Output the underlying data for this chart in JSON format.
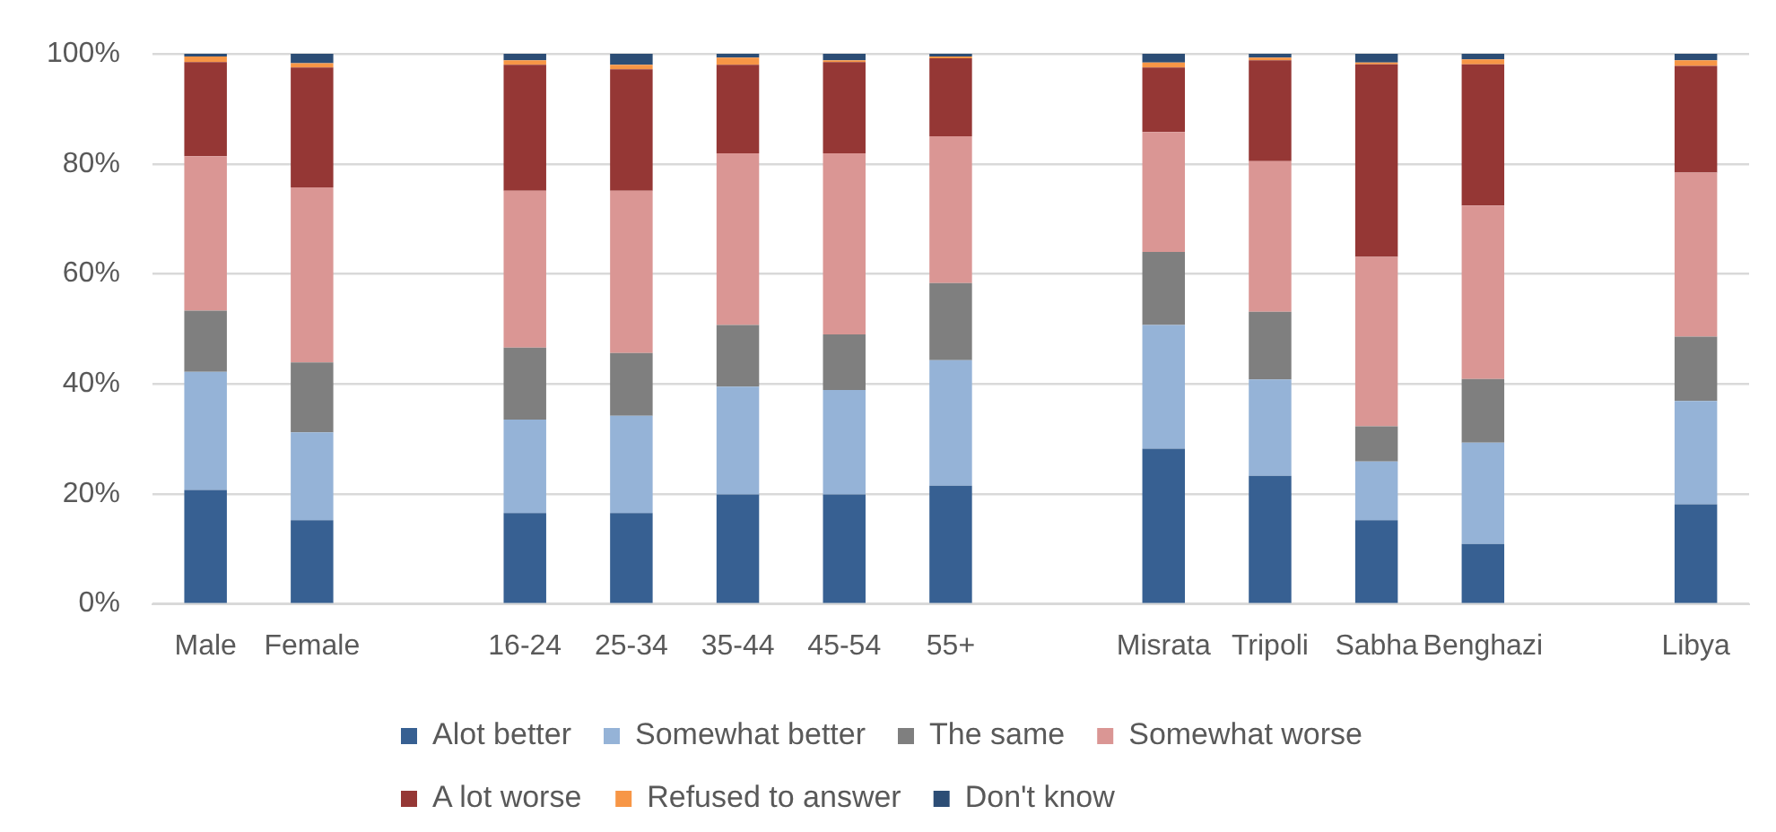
{
  "chart_data": {
    "type": "bar",
    "stacked": true,
    "categories": [
      "Male",
      "Female",
      null,
      "16-24",
      "25-34",
      "35-44",
      "45-54",
      "55+",
      null,
      "Misrata",
      "Tripoli",
      "Sabha",
      "Benghazi",
      null,
      "Libya"
    ],
    "series": [
      {
        "name": "Alot better",
        "color": "#376092",
        "values": [
          20.7,
          15.2,
          null,
          16.5,
          16.5,
          19.9,
          19.9,
          21.5,
          null,
          28.2,
          23.3,
          15.2,
          10.9,
          null,
          18.1
        ]
      },
      {
        "name": "Somewhat better",
        "color": "#95b3d7",
        "values": [
          21.5,
          16.0,
          null,
          17.0,
          17.7,
          19.6,
          19.0,
          22.8,
          null,
          22.5,
          17.5,
          10.7,
          18.4,
          null,
          18.8
        ]
      },
      {
        "name": "The same",
        "color": "#7f7f7f",
        "values": [
          11.1,
          12.7,
          null,
          13.1,
          11.4,
          11.2,
          10.1,
          14.0,
          null,
          13.3,
          12.3,
          6.4,
          11.6,
          null,
          11.7
        ]
      },
      {
        "name": "Somewhat worse",
        "color": "#da9694",
        "values": [
          28.1,
          31.8,
          null,
          28.5,
          29.5,
          31.2,
          32.9,
          26.7,
          null,
          21.8,
          27.4,
          30.8,
          31.5,
          null,
          29.8
        ]
      },
      {
        "name": "A lot worse",
        "color": "#953735",
        "values": [
          17.1,
          21.8,
          null,
          22.9,
          22.1,
          16.1,
          16.6,
          14.2,
          null,
          11.7,
          18.3,
          35.0,
          25.7,
          null,
          19.4
        ]
      },
      {
        "name": "Refused to answer",
        "color": "#f79646",
        "values": [
          1.0,
          0.8,
          null,
          0.8,
          0.8,
          1.3,
          0.3,
          0.3,
          null,
          0.9,
          0.5,
          0.3,
          0.9,
          null,
          1.0
        ]
      },
      {
        "name": "Don't know",
        "color": "#2c4d75",
        "values": [
          0.5,
          1.7,
          null,
          1.2,
          2.0,
          0.7,
          1.2,
          0.5,
          null,
          1.6,
          0.7,
          1.6,
          1.0,
          null,
          1.2
        ]
      }
    ],
    "ylim": [
      0,
      100
    ],
    "yticks": [
      {
        "value": 0,
        "label": "0%"
      },
      {
        "value": 20,
        "label": "20%"
      },
      {
        "value": 40,
        "label": "40%"
      },
      {
        "value": 60,
        "label": "60%"
      },
      {
        "value": 80,
        "label": "80%"
      },
      {
        "value": 100,
        "label": "100%"
      }
    ],
    "grid": "y",
    "legend": "bottom"
  }
}
